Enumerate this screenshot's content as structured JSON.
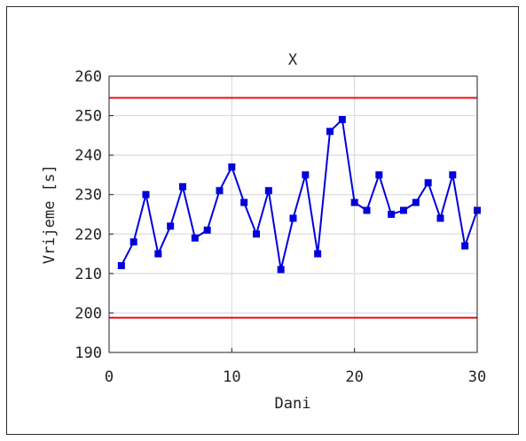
{
  "chart_data": {
    "type": "line",
    "title": "X",
    "xlabel": "Dani",
    "ylabel": "Vrijeme [s]",
    "xlim": [
      0,
      30
    ],
    "ylim": [
      190,
      260
    ],
    "xticks": [
      0,
      10,
      20,
      30
    ],
    "yticks": [
      190,
      200,
      210,
      220,
      230,
      240,
      250,
      260
    ],
    "grid": true,
    "series": [
      {
        "color": "#0000dd",
        "marker": "square",
        "x": [
          1,
          2,
          3,
          4,
          5,
          6,
          7,
          8,
          9,
          10,
          11,
          12,
          13,
          14,
          15,
          16,
          17,
          18,
          19,
          20,
          21,
          22,
          23,
          24,
          25,
          26,
          27,
          28,
          29,
          30
        ],
        "y": [
          212,
          218,
          230,
          215,
          222,
          232,
          219,
          221,
          231,
          237,
          228,
          220,
          231,
          211,
          224,
          235,
          215,
          246,
          249,
          228,
          226,
          235,
          225,
          226,
          228,
          233,
          224,
          235,
          217,
          226
        ]
      }
    ],
    "control_limits": [
      {
        "value": 254.5,
        "color": "#ee1111"
      },
      {
        "value": 198.8,
        "color": "#ee1111"
      }
    ]
  }
}
